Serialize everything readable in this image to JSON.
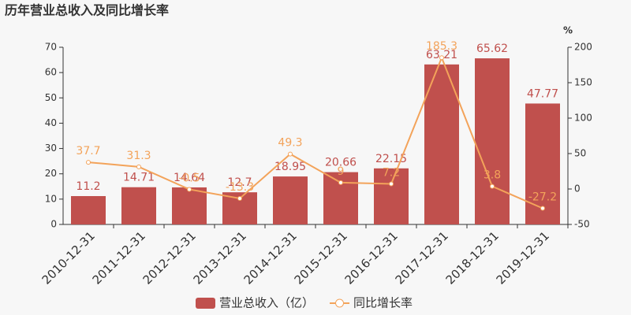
{
  "chart_data": {
    "type": "bar_line",
    "title": "历年营业总收入及同比增长率",
    "categories": [
      "2010-12-31",
      "2011-12-31",
      "2012-12-31",
      "2013-12-31",
      "2014-12-31",
      "2015-12-31",
      "2016-12-31",
      "2017-12-31",
      "2018-12-31",
      "2019-12-31"
    ],
    "series": [
      {
        "name": "营业总收入（亿）",
        "type": "bar",
        "color": "#c0504d",
        "values": [
          11.2,
          14.71,
          14.64,
          12.7,
          18.95,
          20.66,
          22.15,
          63.21,
          65.62,
          47.77
        ]
      },
      {
        "name": "同比增长率",
        "type": "line",
        "axis": "y2",
        "color": "#f3a35a",
        "values": [
          37.7,
          31.3,
          -0.5,
          -13.3,
          49.3,
          9,
          7.2,
          185.3,
          3.8,
          -27.2
        ]
      }
    ],
    "ylim": [
      0,
      70
    ],
    "yticks": [
      0,
      10,
      20,
      30,
      40,
      50,
      60,
      70
    ],
    "y2label": "%",
    "y2lim": [
      -50,
      200
    ],
    "y2ticks": [
      -50,
      0,
      50,
      100,
      150,
      200
    ]
  }
}
